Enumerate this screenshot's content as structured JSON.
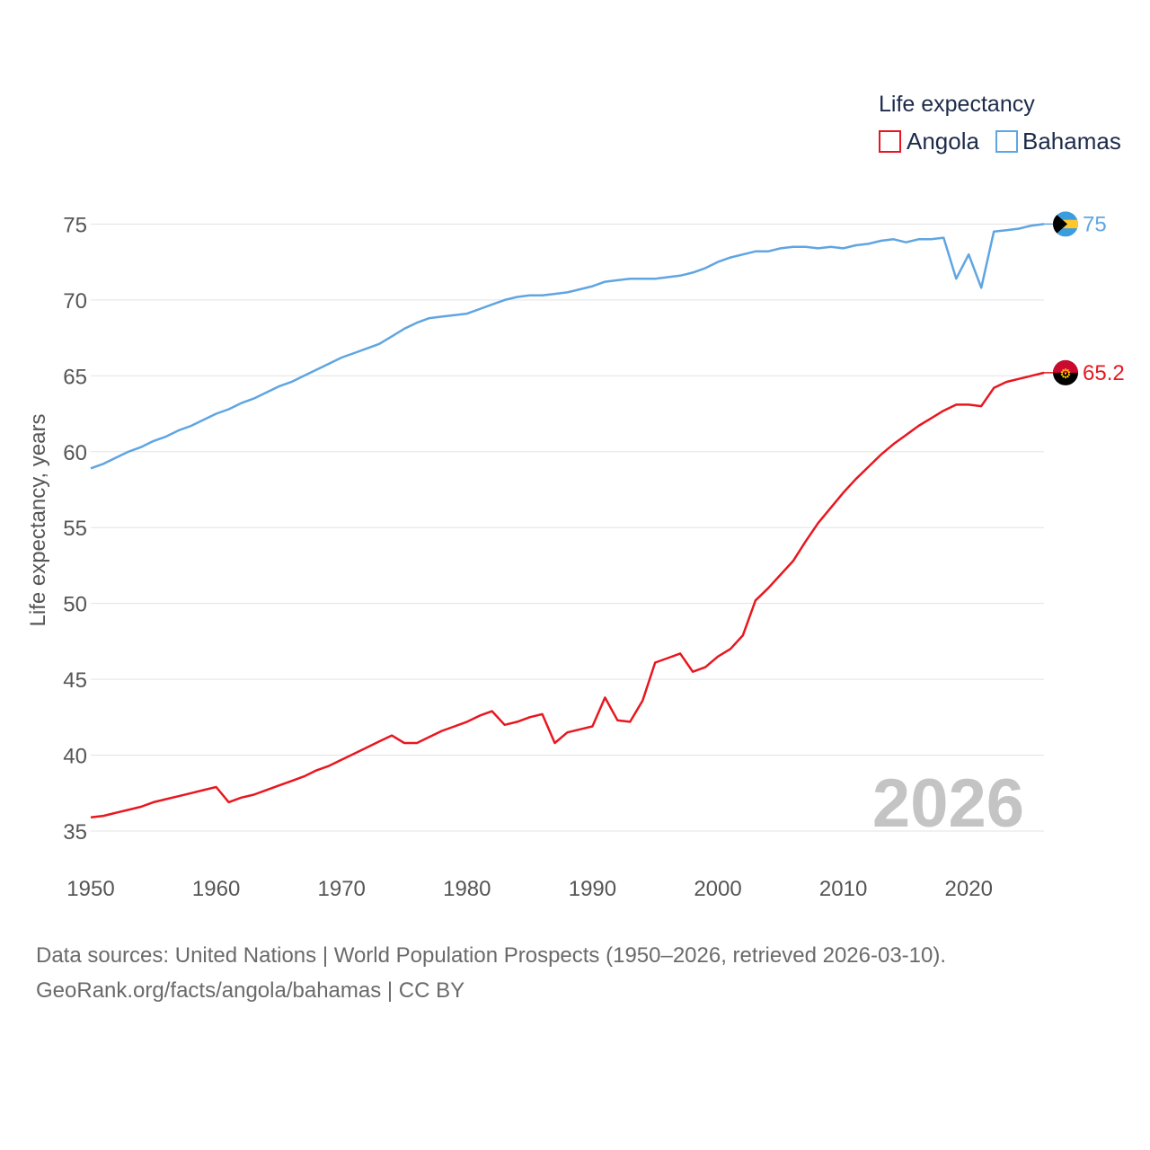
{
  "chart_data": {
    "type": "line",
    "ylabel": "Life expectancy, years",
    "ylim": [
      33,
      76
    ],
    "xlim": [
      1950,
      2026
    ],
    "yticks": [
      35,
      40,
      45,
      50,
      55,
      60,
      65,
      70,
      75
    ],
    "xticks": [
      1950,
      1960,
      1970,
      1980,
      1990,
      2000,
      2010,
      2020
    ],
    "legend": {
      "title": "Life expectancy",
      "position": "top-right"
    },
    "year_label": "2026",
    "x": [
      1950,
      1951,
      1952,
      1953,
      1954,
      1955,
      1956,
      1957,
      1958,
      1959,
      1960,
      1961,
      1962,
      1963,
      1964,
      1965,
      1966,
      1967,
      1968,
      1969,
      1970,
      1971,
      1972,
      1973,
      1974,
      1975,
      1976,
      1977,
      1978,
      1979,
      1980,
      1981,
      1982,
      1983,
      1984,
      1985,
      1986,
      1987,
      1988,
      1989,
      1990,
      1991,
      1992,
      1993,
      1994,
      1995,
      1996,
      1997,
      1998,
      1999,
      2000,
      2001,
      2002,
      2003,
      2004,
      2005,
      2006,
      2007,
      2008,
      2009,
      2010,
      2011,
      2012,
      2013,
      2014,
      2015,
      2016,
      2017,
      2018,
      2019,
      2020,
      2021,
      2022,
      2023,
      2024,
      2025,
      2026
    ],
    "series": [
      {
        "name": "Angola",
        "color": "#e8171f",
        "end_label": "65.2",
        "flag": "angola-flag",
        "values": [
          35.9,
          36.0,
          36.2,
          36.4,
          36.6,
          36.9,
          37.1,
          37.3,
          37.5,
          37.7,
          37.9,
          36.9,
          37.2,
          37.4,
          37.7,
          38.0,
          38.3,
          38.6,
          39.0,
          39.3,
          39.7,
          40.1,
          40.5,
          40.9,
          41.3,
          40.8,
          40.8,
          41.2,
          41.6,
          41.9,
          42.2,
          42.6,
          42.9,
          42.0,
          42.2,
          42.5,
          42.7,
          40.8,
          41.5,
          41.7,
          41.9,
          43.8,
          42.3,
          42.2,
          43.6,
          46.1,
          46.4,
          46.7,
          45.5,
          45.8,
          46.5,
          47.0,
          47.9,
          50.2,
          51.0,
          51.9,
          52.8,
          54.1,
          55.3,
          56.3,
          57.3,
          58.2,
          59.0,
          59.8,
          60.5,
          61.1,
          61.7,
          62.2,
          62.7,
          63.1,
          63.1,
          63.0,
          64.2,
          64.6,
          64.8,
          65.0,
          65.2
        ]
      },
      {
        "name": "Bahamas",
        "color": "#5fa5e2",
        "end_label": "75",
        "flag": "bahamas-flag",
        "values": [
          58.9,
          59.2,
          59.6,
          60.0,
          60.3,
          60.7,
          61.0,
          61.4,
          61.7,
          62.1,
          62.5,
          62.8,
          63.2,
          63.5,
          63.9,
          64.3,
          64.6,
          65.0,
          65.4,
          65.8,
          66.2,
          66.5,
          66.8,
          67.1,
          67.6,
          68.1,
          68.5,
          68.8,
          68.9,
          69.0,
          69.1,
          69.4,
          69.7,
          70.0,
          70.2,
          70.3,
          70.3,
          70.4,
          70.5,
          70.7,
          70.9,
          71.2,
          71.3,
          71.4,
          71.4,
          71.4,
          71.5,
          71.6,
          71.8,
          72.1,
          72.5,
          72.8,
          73.0,
          73.2,
          73.2,
          73.4,
          73.5,
          73.5,
          73.4,
          73.5,
          73.4,
          73.6,
          73.7,
          73.9,
          74.0,
          73.8,
          74.0,
          74.0,
          74.1,
          71.4,
          73.0,
          70.8,
          74.5,
          74.6,
          74.7,
          74.9,
          75.0
        ]
      }
    ]
  },
  "footer": {
    "sources_line": "Data sources: United Nations | World Population Prospects (1950–2026, retrieved 2026-03-10).",
    "attribution_line": "GeoRank.org/facts/angola/bahamas | CC BY"
  }
}
